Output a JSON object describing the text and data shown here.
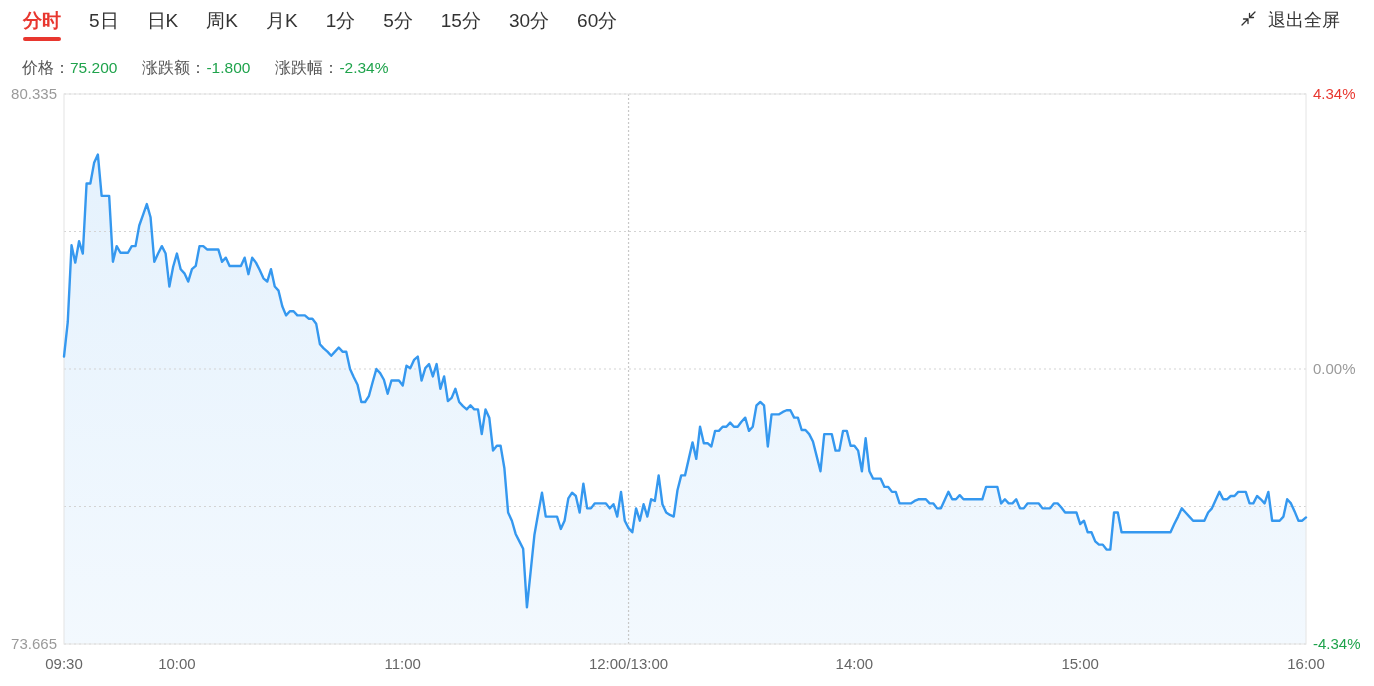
{
  "chart_data": {
    "type": "area",
    "annotations": [
      "分时",
      "5日",
      "日K",
      "周K",
      "月K",
      "1分",
      "5分",
      "15分",
      "30分",
      "60分",
      "退出全屏",
      "价格：75.200",
      "涨跌额：-1.800",
      "涨跌幅：-2.34%"
    ],
    "categories": [
      "09:30",
      null,
      null,
      null,
      null,
      null,
      null,
      null,
      null,
      null,
      null,
      null,
      null,
      null,
      null,
      null,
      null,
      null,
      null,
      null,
      null,
      null,
      null,
      null,
      null,
      null,
      null,
      null,
      null,
      null,
      "10:00",
      null,
      null,
      null,
      null,
      null,
      null,
      null,
      null,
      null,
      null,
      null,
      null,
      null,
      null,
      null,
      null,
      null,
      null,
      null,
      null,
      null,
      null,
      null,
      null,
      null,
      null,
      null,
      null,
      null,
      null,
      null,
      null,
      null,
      null,
      null,
      null,
      null,
      null,
      null,
      null,
      null,
      null,
      null,
      null,
      null,
      null,
      null,
      null,
      null,
      null,
      null,
      null,
      null,
      null,
      null,
      null,
      null,
      null,
      null,
      "11:00",
      null,
      null,
      null,
      null,
      null,
      null,
      null,
      null,
      null,
      null,
      null,
      null,
      null,
      null,
      null,
      null,
      null,
      null,
      null,
      null,
      null,
      null,
      null,
      null,
      null,
      null,
      null,
      null,
      null,
      null,
      null,
      null,
      null,
      null,
      null,
      null,
      null,
      null,
      null,
      null,
      null,
      null,
      null,
      null,
      null,
      null,
      null,
      null,
      null,
      null,
      null,
      null,
      null,
      null,
      null,
      null,
      null,
      null,
      null,
      "12:00/13:00",
      null,
      null,
      null,
      null,
      null,
      null,
      null,
      null,
      null,
      null,
      null,
      null,
      null,
      null,
      null,
      null,
      null,
      null,
      null,
      null,
      null,
      null,
      null,
      null,
      null,
      null,
      null,
      null,
      null,
      null,
      null,
      null,
      null,
      null,
      null,
      null,
      null,
      null,
      null,
      null,
      null,
      null,
      null,
      null,
      null,
      null,
      null,
      null,
      null,
      null,
      null,
      null,
      null,
      null,
      null,
      null,
      null,
      null,
      null,
      "14:00",
      null,
      null,
      null,
      null,
      null,
      null,
      null,
      null,
      null,
      null,
      null,
      null,
      null,
      null,
      null,
      null,
      null,
      null,
      null,
      null,
      null,
      null,
      null,
      null,
      null,
      null,
      null,
      null,
      null,
      null,
      null,
      null,
      null,
      null,
      null,
      null,
      null,
      null,
      null,
      null,
      null,
      null,
      null,
      null,
      null,
      null,
      null,
      null,
      null,
      null,
      null,
      null,
      null,
      null,
      null,
      null,
      null,
      null,
      null,
      "15:00",
      null,
      null,
      null,
      null,
      null,
      null,
      null,
      null,
      null,
      null,
      null,
      null,
      null,
      null,
      null,
      null,
      null,
      null,
      null,
      null,
      null,
      null,
      null,
      null,
      null,
      null,
      null,
      null,
      null,
      null,
      null,
      null,
      null,
      null,
      null,
      null,
      null,
      null,
      null,
      null,
      null,
      null,
      null,
      null,
      null,
      null,
      null,
      null,
      null,
      null,
      null,
      null,
      null,
      null,
      null,
      null,
      null,
      null,
      null,
      "16:00"
    ],
    "series": [
      {
        "color": "#3598ef",
        "values": [
          77.15,
          77.57,
          78.5,
          78.29,
          78.55,
          78.4,
          79.25,
          79.25,
          79.5,
          79.6,
          79.1,
          79.1,
          79.1,
          78.3,
          78.49,
          78.41,
          78.41,
          78.41,
          78.49,
          78.49,
          78.74,
          78.87,
          79.0,
          78.84,
          78.3,
          78.4,
          78.49,
          78.4,
          78.0,
          78.24,
          78.4,
          78.21,
          78.16,
          78.06,
          78.21,
          78.25,
          78.49,
          78.49,
          78.45,
          78.45,
          78.45,
          78.45,
          78.3,
          78.35,
          78.25,
          78.25,
          78.25,
          78.25,
          78.35,
          78.15,
          78.35,
          78.29,
          78.2,
          78.1,
          78.06,
          78.21,
          78.0,
          77.95,
          77.76,
          77.65,
          77.7,
          77.7,
          77.65,
          77.65,
          77.65,
          77.61,
          77.61,
          77.55,
          77.3,
          77.25,
          77.21,
          77.16,
          77.21,
          77.26,
          77.21,
          77.21,
          77.0,
          76.9,
          76.81,
          76.6,
          76.6,
          76.67,
          76.84,
          77.0,
          76.95,
          76.87,
          76.7,
          76.86,
          76.86,
          76.86,
          76.8,
          77.04,
          77.01,
          77.11,
          77.15,
          76.86,
          77.01,
          77.06,
          76.91,
          77.06,
          76.76,
          76.91,
          76.61,
          76.65,
          76.76,
          76.6,
          76.55,
          76.51,
          76.56,
          76.51,
          76.51,
          76.21,
          76.51,
          76.41,
          76.01,
          76.07,
          76.07,
          75.8,
          75.26,
          75.16,
          75.0,
          74.91,
          74.82,
          74.11,
          74.55,
          74.99,
          75.25,
          75.5,
          75.21,
          75.21,
          75.21,
          75.21,
          75.06,
          75.16,
          75.43,
          75.5,
          75.46,
          75.26,
          75.61,
          75.31,
          75.31,
          75.37,
          75.37,
          75.37,
          75.37,
          75.31,
          75.36,
          75.21,
          75.51,
          75.16,
          75.07,
          75.02,
          75.31,
          75.16,
          75.36,
          75.21,
          75.42,
          75.4,
          75.71,
          75.36,
          75.26,
          75.23,
          75.21,
          75.53,
          75.71,
          75.71,
          75.91,
          76.11,
          75.91,
          76.3,
          76.1,
          76.1,
          76.06,
          76.25,
          76.25,
          76.3,
          76.3,
          76.35,
          76.3,
          76.3,
          76.36,
          76.41,
          76.25,
          76.3,
          76.56,
          76.6,
          76.56,
          76.06,
          76.45,
          76.45,
          76.45,
          76.48,
          76.5,
          76.5,
          76.41,
          76.41,
          76.26,
          76.26,
          76.21,
          76.12,
          75.94,
          75.76,
          76.21,
          76.21,
          76.21,
          76.01,
          76.01,
          76.25,
          76.25,
          76.07,
          76.07,
          76.01,
          75.76,
          76.16,
          75.76,
          75.67,
          75.67,
          75.67,
          75.57,
          75.57,
          75.51,
          75.51,
          75.37,
          75.37,
          75.37,
          75.37,
          75.4,
          75.42,
          75.42,
          75.42,
          75.37,
          75.37,
          75.31,
          75.31,
          75.41,
          75.51,
          75.42,
          75.42,
          75.47,
          75.42,
          75.42,
          75.42,
          75.42,
          75.42,
          75.42,
          75.57,
          75.57,
          75.57,
          75.57,
          75.37,
          75.42,
          75.37,
          75.37,
          75.42,
          75.31,
          75.31,
          75.37,
          75.37,
          75.37,
          75.37,
          75.31,
          75.31,
          75.31,
          75.37,
          75.37,
          75.32,
          75.26,
          75.26,
          75.26,
          75.26,
          75.12,
          75.16,
          75.02,
          75.02,
          74.91,
          74.87,
          74.87,
          74.81,
          74.81,
          75.26,
          75.26,
          75.02,
          75.02,
          75.02,
          75.02,
          75.02,
          75.02,
          75.02,
          75.02,
          75.02,
          75.02,
          75.02,
          75.02,
          75.02,
          75.02,
          75.12,
          75.21,
          75.31,
          75.26,
          75.21,
          75.16,
          75.16,
          75.16,
          75.16,
          75.26,
          75.31,
          75.41,
          75.51,
          75.42,
          75.42,
          75.46,
          75.46,
          75.51,
          75.51,
          75.51,
          75.37,
          75.37,
          75.46,
          75.42,
          75.37,
          75.51,
          75.16,
          75.16,
          75.16,
          75.21,
          75.42,
          75.37,
          75.27,
          75.16,
          75.16,
          75.2
        ]
      }
    ],
    "ylim": [
      73.665,
      80.335
    ],
    "yticks": [
      73.665,
      {
        "value": 75.3325,
        "label": null
      },
      {
        "value": 77,
        "label": null
      },
      {
        "value": 78.6675,
        "label": null
      },
      80.335
    ],
    "y2lim": [
      -4.34,
      4.34
    ],
    "y2ticks": [
      {
        "value": -4.34,
        "label": "-4.34%"
      },
      {
        "value": 0,
        "label": "0.00%"
      },
      {
        "value": 4.34,
        "label": "4.34%"
      }
    ],
    "grid": "y",
    "ref_lines": [
      {
        "axis": "x",
        "value": "12:00/13:00",
        "line_style": "dotted"
      }
    ]
  }
}
